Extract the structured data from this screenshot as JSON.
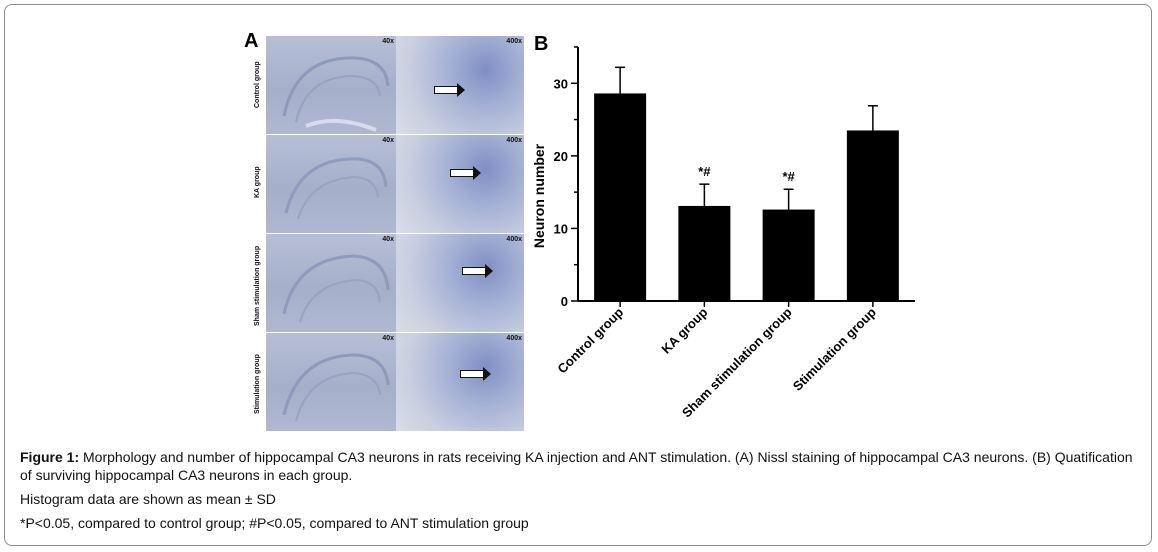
{
  "panel_a": {
    "letter": "A",
    "low_mag": "40x",
    "high_mag": "400x",
    "groups": [
      "Control group",
      "KA group",
      "Sham stimulation group",
      "Stimulation group"
    ]
  },
  "chart_data": {
    "type": "bar",
    "panel_letter": "B",
    "categories": [
      "Control group",
      "KA group",
      "Sham stimulation group",
      "Stimulation group"
    ],
    "values": [
      28.6,
      13.1,
      12.6,
      23.5
    ],
    "errors": [
      3.6,
      3.0,
      2.8,
      3.4
    ],
    "annotations": [
      "",
      "*#",
      "*#",
      ""
    ],
    "ylabel": "Neuron number",
    "xlabel": "",
    "ylim": [
      0,
      35
    ],
    "yticks": [
      0,
      10,
      20,
      30
    ],
    "bar_color": "#000000",
    "grid": false
  },
  "caption": {
    "figure_label": "Figure 1:",
    "text": " Morphology and number of hippocampal CA3 neurons in rats receiving KA injection and ANT stimulation. (A) Nissl staining of hippocampal CA3 neurons. (B) Quatification of surviving hippocampal CA3 neurons in each group.",
    "note1": "Histogram data are shown as mean ± SD",
    "note2": "*P<0.05, compared to control group; #P<0.05, compared to ANT stimulation group"
  }
}
